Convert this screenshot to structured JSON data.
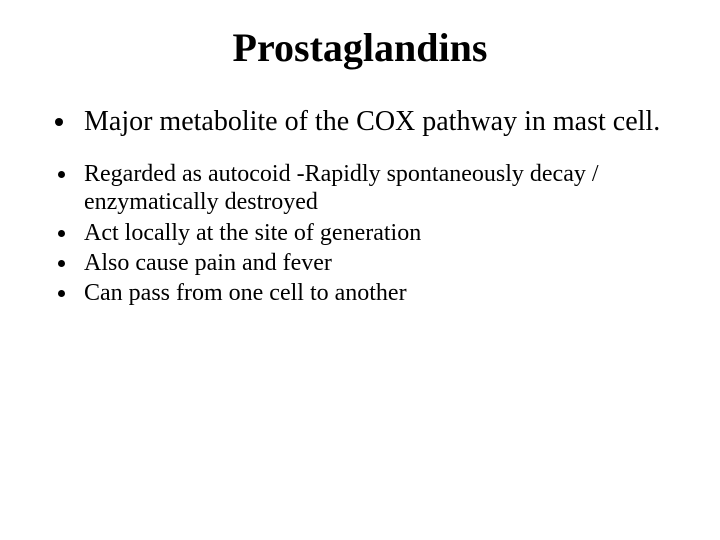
{
  "slide": {
    "title": "Prostaglandins",
    "title_fontsize": 40,
    "bullets": [
      {
        "text": "Major metabolite of the COX pathway in mast cell.",
        "fontsize": 28,
        "main": true
      },
      {
        "text": " Regarded as autocoid -Rapidly spontaneously decay / enzymatically destroyed",
        "fontsize": 24,
        "main": false
      },
      {
        "text": "Act locally at the site of generation",
        "fontsize": 24,
        "main": false
      },
      {
        "text": "Also cause pain and fever",
        "fontsize": 24,
        "main": false
      },
      {
        "text": "Can pass from one cell to another",
        "fontsize": 24,
        "main": false
      }
    ],
    "colors": {
      "background": "#ffffff",
      "text": "#000000"
    },
    "line_height": 1.18
  }
}
